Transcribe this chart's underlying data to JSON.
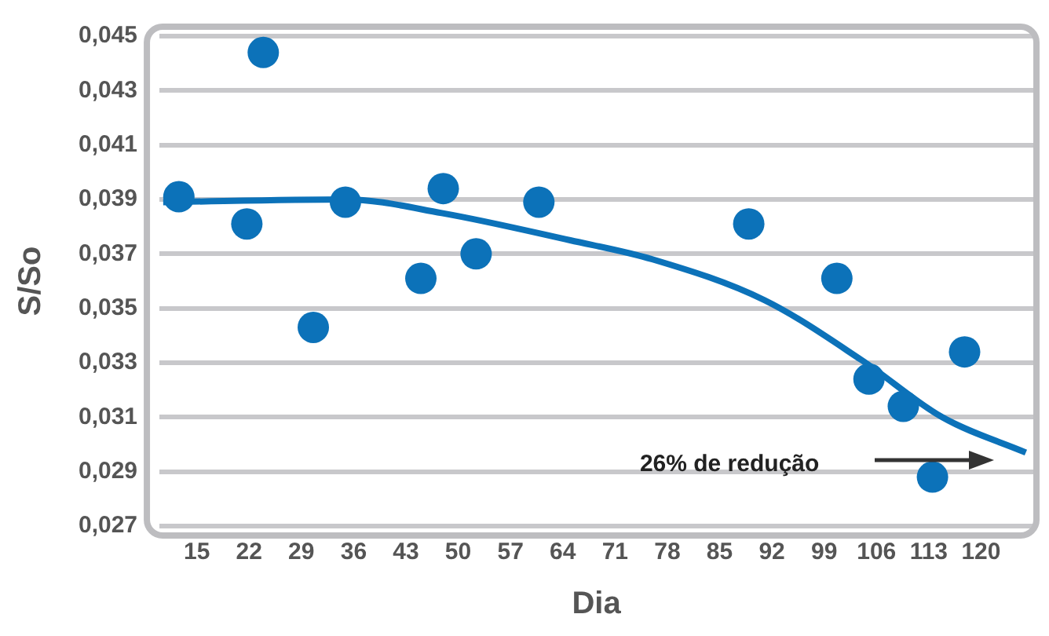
{
  "chart_data": {
    "type": "scatter",
    "xlabel": "Dia",
    "ylabel": "S/So",
    "xlim": [
      10,
      127
    ],
    "xticks": [
      15,
      22,
      29,
      36,
      43,
      50,
      57,
      64,
      71,
      78,
      85,
      92,
      99,
      106,
      113,
      120
    ],
    "ylim": [
      0.027,
      0.045
    ],
    "yticks": [
      {
        "value": 0.027,
        "label": "0,027"
      },
      {
        "value": 0.029,
        "label": "0,029"
      },
      {
        "value": 0.031,
        "label": "0,031"
      },
      {
        "value": 0.033,
        "label": "0,033"
      },
      {
        "value": 0.035,
        "label": "0,035"
      },
      {
        "value": 0.037,
        "label": "0,037"
      },
      {
        "value": 0.039,
        "label": "0,039"
      },
      {
        "value": 0.041,
        "label": "0,041"
      },
      {
        "value": 0.043,
        "label": "0,043"
      },
      {
        "value": 0.045,
        "label": "0,045"
      }
    ],
    "grid": "y",
    "legend": false,
    "marker": "circle",
    "annotations": [
      "26% de redução"
    ],
    "series": [
      {
        "type": "scatter",
        "color": "#0c72b9",
        "x": [
          12.6,
          21.7,
          23.9,
          30.6,
          34.9,
          45,
          48,
          52.4,
          60.8,
          88.9,
          100.7,
          105,
          109.6,
          113.5,
          117.8
        ],
        "values": [
          0.0391,
          0.0381,
          0.0444,
          0.0343,
          0.0389,
          0.0361,
          0.0394,
          0.037,
          0.0389,
          0.0381,
          0.0361,
          0.0324,
          0.0314,
          0.0288,
          0.0334
        ]
      },
      {
        "type": "line",
        "color": "#0c72b9",
        "marker": "none",
        "line_style": "solid",
        "x": [
          10.5,
          34.9,
          47.8,
          65,
          76,
          91,
          104,
          114.8,
          126
        ],
        "values": [
          0.0389,
          0.039,
          0.0385,
          0.0375,
          0.0368,
          0.0353,
          0.0331,
          0.031,
          0.0297
        ]
      }
    ]
  }
}
